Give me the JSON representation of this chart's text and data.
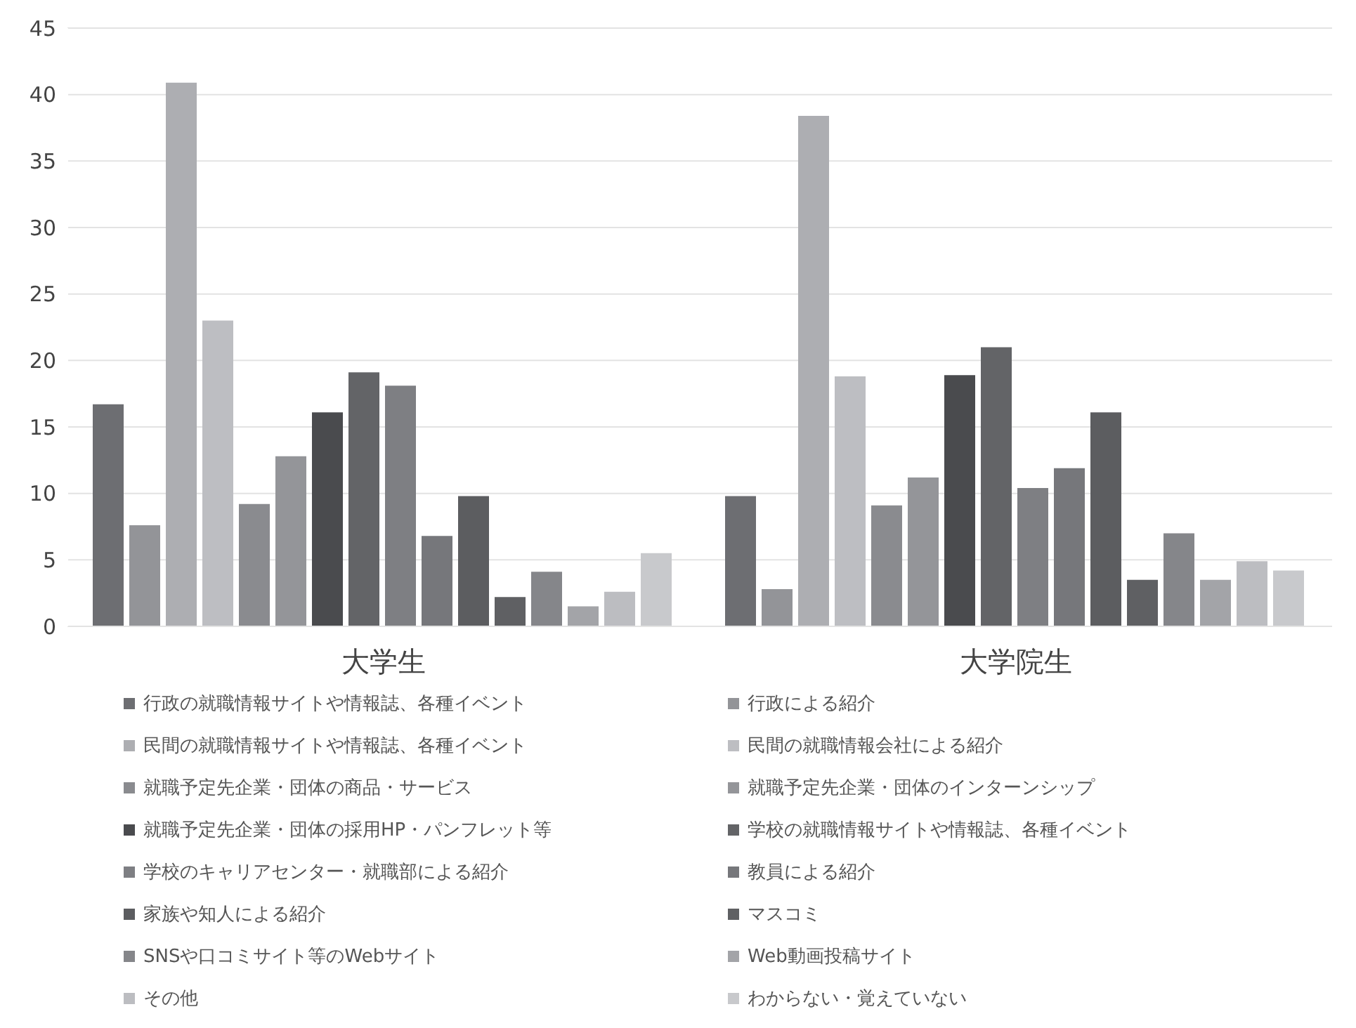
{
  "chart_data": {
    "type": "bar",
    "categories": [
      "大学生",
      "大学院生"
    ],
    "series": [
      {
        "name": "行政の就職情報サイトや情報誌、各種イベント",
        "color": "#6d6e72",
        "values": [
          16.7,
          9.8
        ]
      },
      {
        "name": "行政による紹介",
        "color": "#939498",
        "values": [
          7.6,
          2.8
        ]
      },
      {
        "name": "民間の就職情報サイトや情報誌、各種イベント",
        "color": "#adaeb2",
        "values": [
          40.9,
          38.4
        ]
      },
      {
        "name": "民間の就職情報会社による紹介",
        "color": "#bdbec2",
        "values": [
          23.0,
          18.8
        ]
      },
      {
        "name": "就職予定先企業・団体の商品・サービス",
        "color": "#8a8b8f",
        "values": [
          9.2,
          9.1
        ]
      },
      {
        "name": "就職予定先企業・団体のインターンシップ",
        "color": "#949599",
        "values": [
          12.8,
          11.2
        ]
      },
      {
        "name": "就職予定先企業・団体の採用HP・パンフレット等",
        "color": "#4a4b4e",
        "values": [
          16.1,
          18.9
        ]
      },
      {
        "name": "学校の就職情報サイトや情報誌、各種イベント",
        "color": "#636467",
        "values": [
          19.1,
          21.0
        ]
      },
      {
        "name": "学校のキャリアセンター・就職部による紹介",
        "color": "#7e7f83",
        "values": [
          18.1,
          10.4
        ]
      },
      {
        "name": "教員による紹介",
        "color": "#76777b",
        "values": [
          6.8,
          11.9
        ]
      },
      {
        "name": "家族や知人による紹介",
        "color": "#5c5d60",
        "values": [
          9.8,
          16.1
        ]
      },
      {
        "name": "マスコミ",
        "color": "#5f6063",
        "values": [
          2.2,
          3.5
        ]
      },
      {
        "name": "SNSや口コミサイト等のWebサイト",
        "color": "#85868a",
        "values": [
          4.1,
          7.0
        ]
      },
      {
        "name": "Web動画投稿サイト",
        "color": "#a3a4a8",
        "values": [
          1.5,
          3.5
        ]
      },
      {
        "name": "その他",
        "color": "#bcbdc1",
        "values": [
          2.6,
          4.9
        ]
      },
      {
        "name": "わからない・覚えていない",
        "color": "#c8c9cc",
        "values": [
          5.5,
          4.2
        ]
      }
    ],
    "ylim": [
      0,
      45
    ],
    "yticks": [
      0,
      5,
      10,
      15,
      20,
      25,
      30,
      35,
      40,
      45
    ],
    "grid": "y",
    "legend": "bottom"
  }
}
